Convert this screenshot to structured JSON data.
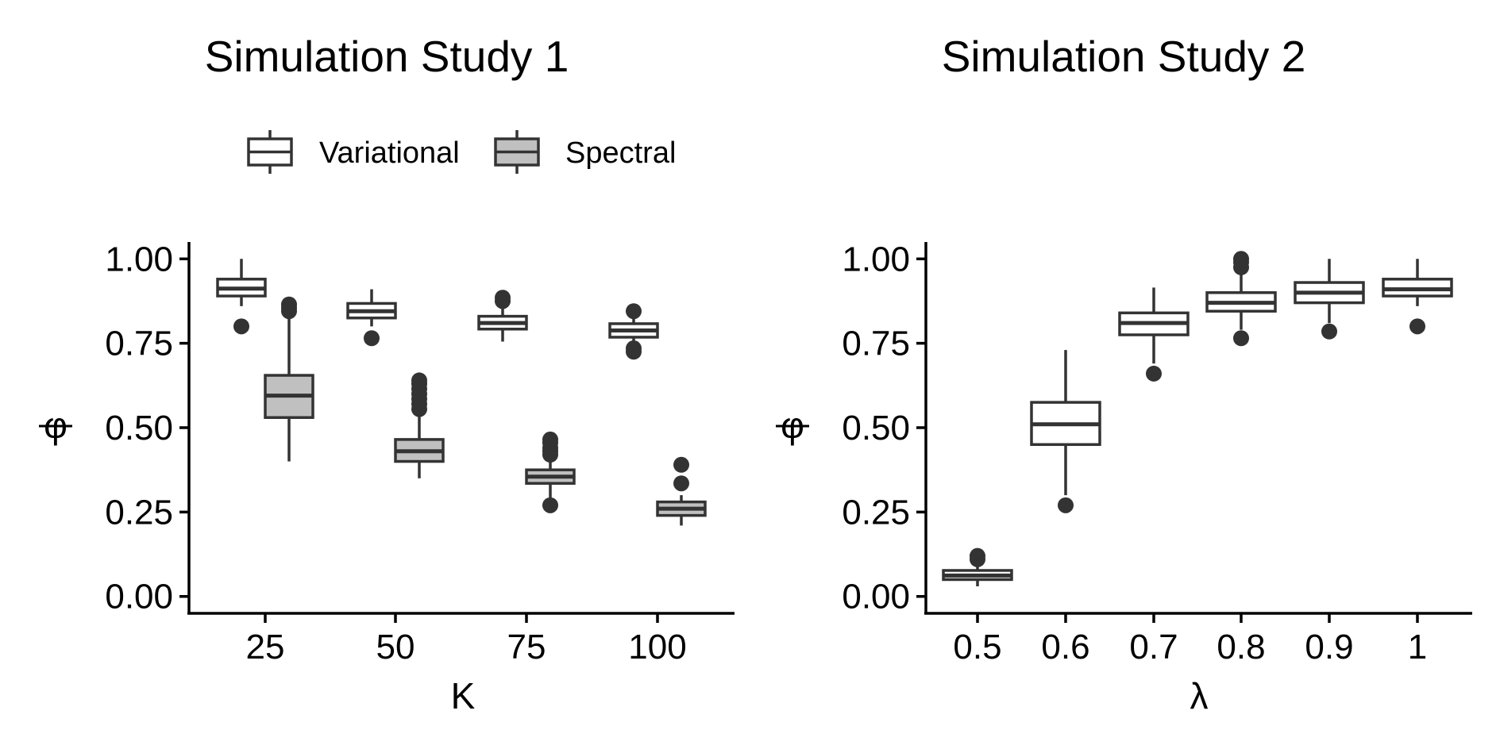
{
  "chart_data": [
    {
      "type": "boxplot",
      "title": "Simulation Study 1",
      "xlabel": "K",
      "ylabel": "φ",
      "ylim": [
        -0.05,
        1.05
      ],
      "yticks": [
        0.0,
        0.25,
        0.5,
        0.75,
        1.0
      ],
      "ytick_labels": [
        "0.00",
        "0.25",
        "0.50",
        "0.75",
        "1.00"
      ],
      "categories": [
        "25",
        "50",
        "75",
        "100"
      ],
      "legend": {
        "position": "top",
        "entries": [
          {
            "name": "Variational",
            "fill": "#ffffff"
          },
          {
            "name": "Spectral",
            "fill": "#c0c0c0"
          }
        ]
      },
      "series": [
        {
          "name": "Variational",
          "fill": "#ffffff",
          "boxes": [
            {
              "category": "25",
              "min": 0.86,
              "q1": 0.89,
              "median": 0.912,
              "q3": 0.94,
              "max": 1.0,
              "outliers": [
                0.8
              ]
            },
            {
              "category": "50",
              "min": 0.8,
              "q1": 0.825,
              "median": 0.845,
              "q3": 0.868,
              "max": 0.91,
              "outliers": [
                0.765
              ]
            },
            {
              "category": "75",
              "min": 0.755,
              "q1": 0.792,
              "median": 0.81,
              "q3": 0.83,
              "max": 0.87,
              "outliers": [
                0.875,
                0.885
              ]
            },
            {
              "category": "100",
              "min": 0.74,
              "q1": 0.768,
              "median": 0.788,
              "q3": 0.808,
              "max": 0.825,
              "outliers": [
                0.725,
                0.735,
                0.845
              ]
            }
          ]
        },
        {
          "name": "Spectral",
          "fill": "#c0c0c0",
          "boxes": [
            {
              "category": "25",
              "min": 0.4,
              "q1": 0.53,
              "median": 0.595,
              "q3": 0.655,
              "max": 0.84,
              "outliers": [
                0.845,
                0.855,
                0.865
              ]
            },
            {
              "category": "50",
              "min": 0.35,
              "q1": 0.4,
              "median": 0.43,
              "q3": 0.465,
              "max": 0.55,
              "outliers": [
                0.555,
                0.57,
                0.585,
                0.6,
                0.615,
                0.63,
                0.64
              ]
            },
            {
              "category": "75",
              "min": 0.29,
              "q1": 0.335,
              "median": 0.355,
              "q3": 0.375,
              "max": 0.415,
              "outliers": [
                0.27,
                0.42,
                0.43,
                0.44,
                0.455,
                0.465
              ]
            },
            {
              "category": "100",
              "min": 0.21,
              "q1": 0.24,
              "median": 0.26,
              "q3": 0.28,
              "max": 0.3,
              "outliers": [
                0.335,
                0.39
              ]
            }
          ]
        }
      ]
    },
    {
      "type": "boxplot",
      "title": "Simulation Study 2",
      "xlabel": "λ",
      "ylabel": "φ",
      "ylim": [
        -0.05,
        1.05
      ],
      "yticks": [
        0.0,
        0.25,
        0.5,
        0.75,
        1.0
      ],
      "ytick_labels": [
        "0.00",
        "0.25",
        "0.50",
        "0.75",
        "1.00"
      ],
      "categories": [
        "0.5",
        "0.6",
        "0.7",
        "0.8",
        "0.9",
        "1"
      ],
      "series": [
        {
          "name": "Variational",
          "fill": "#ffffff",
          "boxes": [
            {
              "category": "0.5",
              "min": 0.03,
              "q1": 0.05,
              "median": 0.062,
              "q3": 0.077,
              "max": 0.1,
              "outliers": [
                0.11,
                0.12
              ]
            },
            {
              "category": "0.6",
              "min": 0.3,
              "q1": 0.45,
              "median": 0.51,
              "q3": 0.575,
              "max": 0.73,
              "outliers": [
                0.27
              ]
            },
            {
              "category": "0.7",
              "min": 0.69,
              "q1": 0.775,
              "median": 0.81,
              "q3": 0.84,
              "max": 0.915,
              "outliers": [
                0.66
              ]
            },
            {
              "category": "0.8",
              "min": 0.79,
              "q1": 0.845,
              "median": 0.87,
              "q3": 0.9,
              "max": 0.96,
              "outliers": [
                0.765,
                0.975,
                0.99,
                1.0
              ]
            },
            {
              "category": "0.9",
              "min": 0.81,
              "q1": 0.87,
              "median": 0.9,
              "q3": 0.93,
              "max": 1.0,
              "outliers": [
                0.785
              ]
            },
            {
              "category": "1",
              "min": 0.86,
              "q1": 0.89,
              "median": 0.91,
              "q3": 0.94,
              "max": 1.0,
              "outliers": [
                0.8
              ]
            }
          ]
        }
      ]
    }
  ]
}
